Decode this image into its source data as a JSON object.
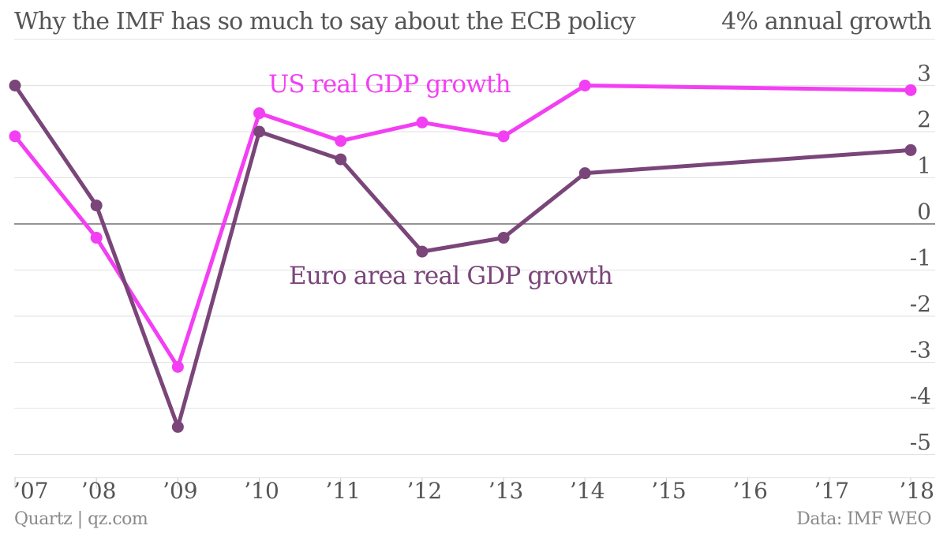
{
  "header": {
    "title": "Why the IMF has so much to say about the ECB policy",
    "unit_label": "4% annual growth"
  },
  "footer": {
    "credit": "Quartz | qz.com",
    "source": "Data: IMF WEO"
  },
  "colors": {
    "us": "#f33ff3",
    "euro": "#7a4579",
    "grid": "#e2e2e2",
    "zero_line": "#555555",
    "text": "#555555"
  },
  "chart_data": {
    "type": "line",
    "title": "Why the IMF has so much to say about the ECB policy",
    "ylabel": "4% annual growth",
    "ylim": [
      -5.5,
      4
    ],
    "y_ticks": [
      3,
      2,
      1,
      0,
      -1,
      -2,
      -3,
      -4,
      -5
    ],
    "y_tick_labels": [
      "3",
      "2",
      "1",
      "0",
      "-1",
      "-2",
      "-3",
      "-4",
      "-5"
    ],
    "xlim": [
      2007,
      2018
    ],
    "x_ticks": [
      2007,
      2008,
      2009,
      2010,
      2011,
      2012,
      2013,
      2014,
      2015,
      2016,
      2017,
      2018
    ],
    "x_tick_labels": [
      "’07",
      "’08",
      "’09",
      "’10",
      "’11",
      "’12",
      "’13",
      "’14",
      "’15",
      "’16",
      "’17",
      "’18"
    ],
    "grid": true,
    "series": [
      {
        "name": "US real GDP growth",
        "color": "#f33ff3",
        "x": [
          2007,
          2008,
          2009,
          2010,
          2011,
          2012,
          2013,
          2014,
          2018
        ],
        "values": [
          1.9,
          -0.3,
          -3.1,
          2.4,
          1.8,
          2.2,
          1.9,
          3.0,
          2.9
        ]
      },
      {
        "name": "Euro area real GDP growth",
        "color": "#7a4579",
        "x": [
          2007,
          2008,
          2009,
          2010,
          2011,
          2012,
          2013,
          2014,
          2018
        ],
        "values": [
          3.0,
          0.4,
          -4.4,
          2.0,
          1.4,
          -0.6,
          -0.3,
          1.1,
          1.6
        ]
      }
    ]
  }
}
